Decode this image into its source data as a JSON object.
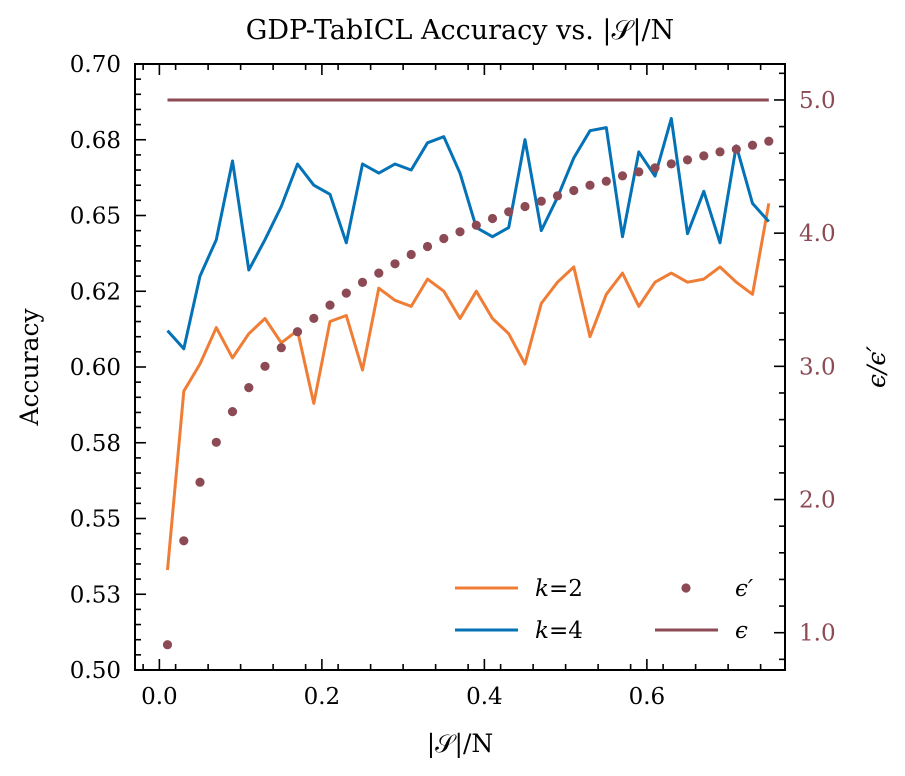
{
  "chart_data": {
    "type": "line",
    "title": "GDP-TabICL Accuracy vs. |𝒮|/N",
    "xlabel": "|𝒮|/N",
    "ylabel": "Accuracy",
    "y2label": "ϵ/ϵ′",
    "xlim": [
      -0.03,
      0.77
    ],
    "ylim": [
      0.5,
      0.7
    ],
    "y2lim": [
      0.72,
      5.27
    ],
    "x_ticks": [
      "0.0",
      "0.2",
      "0.4",
      "0.6"
    ],
    "x_tick_values": [
      0.0,
      0.2,
      0.4,
      0.6
    ],
    "y_ticks": [
      "0.50",
      "0.53",
      "0.55",
      "0.58",
      "0.60",
      "0.62",
      "0.65",
      "0.68",
      "0.70"
    ],
    "y_tick_values": [
      0.5,
      0.525,
      0.55,
      0.575,
      0.6,
      0.625,
      0.65,
      0.675,
      0.7
    ],
    "y2_ticks": [
      "1.0",
      "2.0",
      "3.0",
      "4.0",
      "5.0"
    ],
    "y2_tick_values": [
      1.0,
      2.0,
      3.0,
      4.0,
      5.0
    ],
    "grid": false,
    "legend_position": "lower-right",
    "x": [
      0.01,
      0.03,
      0.05,
      0.07,
      0.09,
      0.11,
      0.13,
      0.15,
      0.17,
      0.19,
      0.21,
      0.23,
      0.25,
      0.27,
      0.29,
      0.31,
      0.33,
      0.35,
      0.37,
      0.39,
      0.41,
      0.43,
      0.45,
      0.47,
      0.49,
      0.51,
      0.53,
      0.55,
      0.57,
      0.59,
      0.61,
      0.63,
      0.65,
      0.67,
      0.69,
      0.71,
      0.73,
      0.75
    ],
    "series": [
      {
        "name": "k=2",
        "label_italic": "k",
        "label_rest": "=2",
        "axis": "left",
        "style": "line",
        "color": "#f07d36",
        "values": [
          0.533,
          0.592,
          0.601,
          0.613,
          0.603,
          0.611,
          0.616,
          0.608,
          0.612,
          0.588,
          0.615,
          0.617,
          0.599,
          0.626,
          0.622,
          0.62,
          0.629,
          0.625,
          0.616,
          0.625,
          0.616,
          0.611,
          0.601,
          0.621,
          0.628,
          0.633,
          0.61,
          0.624,
          0.631,
          0.62,
          0.628,
          0.631,
          0.628,
          0.629,
          0.633,
          0.628,
          0.624,
          0.654
        ]
      },
      {
        "name": "k=4",
        "label_italic": "k",
        "label_rest": "=4",
        "axis": "left",
        "style": "line",
        "color": "#0472b6",
        "values": [
          0.612,
          0.606,
          0.63,
          0.642,
          0.668,
          0.632,
          0.642,
          0.653,
          0.667,
          0.66,
          0.657,
          0.641,
          0.667,
          0.664,
          0.667,
          0.665,
          0.674,
          0.676,
          0.664,
          0.646,
          0.643,
          0.646,
          0.675,
          0.645,
          0.656,
          0.669,
          0.678,
          0.679,
          0.643,
          0.671,
          0.663,
          0.682,
          0.644,
          0.658,
          0.641,
          0.673,
          0.654,
          0.648
        ]
      },
      {
        "name": "ϵ′",
        "axis": "right",
        "style": "dots",
        "color": "#8c4a54",
        "values": [
          0.91,
          1.69,
          2.13,
          2.43,
          2.66,
          2.84,
          3.0,
          3.14,
          3.26,
          3.36,
          3.46,
          3.55,
          3.63,
          3.7,
          3.77,
          3.84,
          3.9,
          3.96,
          4.01,
          4.06,
          4.11,
          4.16,
          4.2,
          4.24,
          4.28,
          4.32,
          4.36,
          4.39,
          4.43,
          4.46,
          4.49,
          4.52,
          4.55,
          4.58,
          4.61,
          4.63,
          4.66,
          4.69
        ]
      },
      {
        "name": "ϵ",
        "axis": "right",
        "style": "line",
        "color": "#8c4a54",
        "values": [
          5.0,
          5.0,
          5.0,
          5.0,
          5.0,
          5.0,
          5.0,
          5.0,
          5.0,
          5.0,
          5.0,
          5.0,
          5.0,
          5.0,
          5.0,
          5.0,
          5.0,
          5.0,
          5.0,
          5.0,
          5.0,
          5.0,
          5.0,
          5.0,
          5.0,
          5.0,
          5.0,
          5.0,
          5.0,
          5.0,
          5.0,
          5.0,
          5.0,
          5.0,
          5.0,
          5.0,
          5.0,
          5.0
        ]
      }
    ],
    "right_axis_color": "#8c4a54"
  }
}
